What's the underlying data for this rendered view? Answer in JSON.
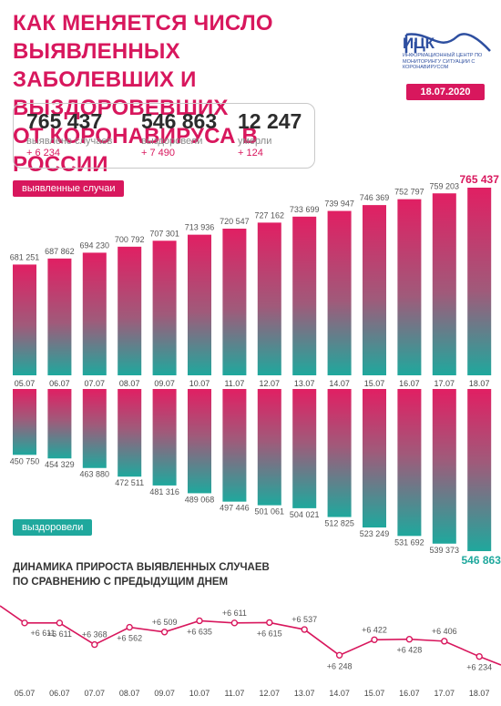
{
  "header": {
    "title_lines": [
      "КАК МЕНЯЕТСЯ ЧИСЛО ВЫЯВЛЕННЫХ",
      "ЗАБОЛЕВШИХ И ВЫЗДОРОВЕВШИХ",
      "ОТ КОРОНАВИРУСА В РОССИИ"
    ],
    "logo_name": "ИЦК",
    "logo_sub": "ИНФОРМАЦИОННЫЙ ЦЕНТР ПО МОНИТОРИНГУ СИТУАЦИИ С КОРОНАВИРУСОМ",
    "date": "18.07.2020"
  },
  "stats": [
    {
      "value": "765 437",
      "label": "выявлено случаев",
      "delta": "+ 6 234"
    },
    {
      "value": "546 863",
      "label": "выздоровели",
      "delta": "+ 7 490"
    },
    {
      "value": "12 247",
      "label": "умерли",
      "delta": "+ 124"
    }
  ],
  "tags": {
    "cases": "выявленные случаи",
    "recovered": "выздоровели"
  },
  "section2_title_lines": [
    "ДИНАМИКА ПРИРОСТА ВЫЯВЛЕННЫХ СЛУЧАЕВ",
    "ПО СРАВНЕНИЮ С ПРЕДЫДУЩИМ ДНЕМ"
  ],
  "colors": {
    "accent": "#d8175d",
    "teal": "#1fa89d",
    "logo": "#2e4fa0"
  },
  "chart_data": [
    {
      "type": "bar",
      "categories": [
        "05.07",
        "06.07",
        "07.07",
        "08.07",
        "09.07",
        "10.07",
        "11.07",
        "12.07",
        "13.07",
        "14.07",
        "15.07",
        "16.07",
        "17.07",
        "18.07"
      ],
      "series": [
        {
          "name": "выявленные случаи",
          "values": [
            681251,
            687862,
            694230,
            700792,
            707301,
            713936,
            720547,
            727162,
            733699,
            739947,
            746369,
            752797,
            759203,
            765437
          ]
        }
      ],
      "labels": [
        "681 251",
        "687 862",
        "694 230",
        "700 792",
        "707 301",
        "713 936",
        "720 547",
        "727 162",
        "733 699",
        "739 947",
        "746 369",
        "752 797",
        "759 203",
        "765 437"
      ]
    },
    {
      "type": "bar",
      "categories": [
        "05.07",
        "06.07",
        "07.07",
        "08.07",
        "09.07",
        "10.07",
        "11.07",
        "12.07",
        "13.07",
        "14.07",
        "15.07",
        "16.07",
        "17.07",
        "18.07"
      ],
      "series": [
        {
          "name": "выздоровели",
          "values": [
            450750,
            454329,
            463880,
            472511,
            481316,
            489068,
            497446,
            501061,
            504021,
            512825,
            523249,
            531692,
            539373,
            546863
          ]
        }
      ],
      "labels": [
        "450 750",
        "454 329",
        "463 880",
        "472 511",
        "481 316",
        "489 068",
        "497 446",
        "501 061",
        "504 021",
        "512 825",
        "523 249",
        "531 692",
        "539 373",
        "546 863"
      ]
    },
    {
      "type": "line",
      "x": [
        "05.07",
        "06.07",
        "07.07",
        "08.07",
        "09.07",
        "10.07",
        "11.07",
        "12.07",
        "13.07",
        "14.07",
        "15.07",
        "16.07",
        "17.07",
        "18.07"
      ],
      "values": [
        6611,
        6611,
        6368,
        6562,
        6509,
        6635,
        6611,
        6615,
        6537,
        6248,
        6422,
        6428,
        6406,
        6234
      ],
      "labels": [
        "+6 611",
        "+6 611",
        "+6 368",
        "+6 562",
        "+6 509",
        "+6 635",
        "+6 611",
        "+6 615",
        "+6 537",
        "+6 248",
        "+6 422",
        "+6 428",
        "+6 406",
        "+6 234"
      ]
    }
  ]
}
